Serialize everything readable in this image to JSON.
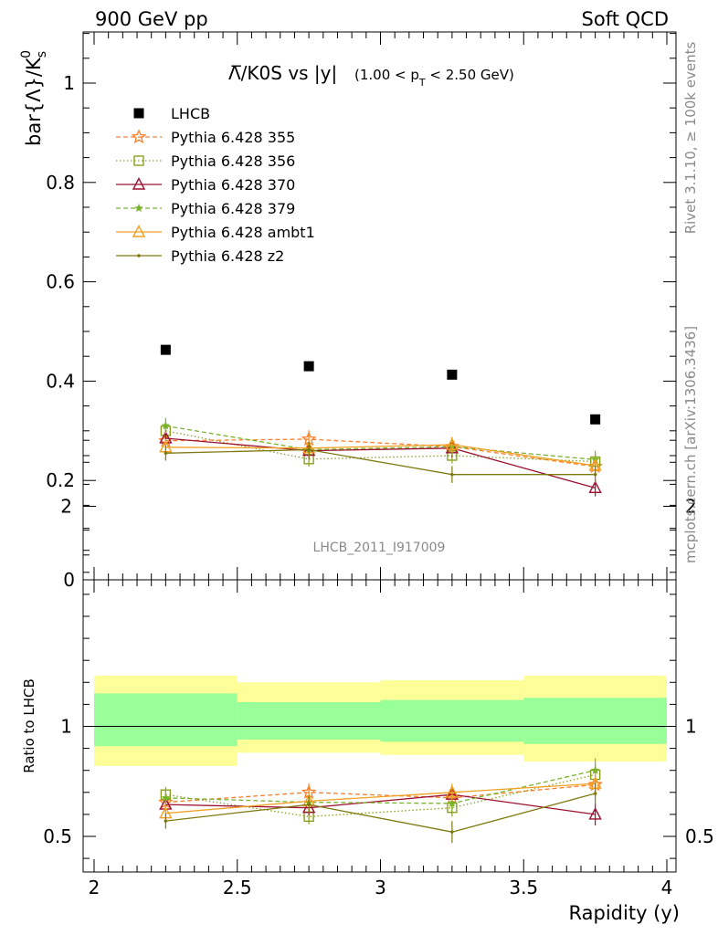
{
  "header": {
    "left": "900 GeV pp",
    "right": "Soft QCD"
  },
  "side_labels": {
    "top": "Rivet 3.1.10, ≥ 100k events",
    "bottom": "mcplots.cern.ch [arXiv:1306.3436]"
  },
  "watermark": "LHCB_2011_I917009",
  "colors": {
    "data": "#000000",
    "p355": "#ff7f27",
    "p356": "#8ca020",
    "p370": "#9c1131",
    "p379": "#78b428",
    "ambt1": "#f0a020",
    "z2": "#7f7a10",
    "band_outer": "#ffff99",
    "band_inner": "#99ff99"
  },
  "chart_data": [
    {
      "type": "scatter",
      "panel": "main",
      "title": "Λ̅/K0S vs |y|",
      "title_note": "(1.00 < p",
      "title_note_sub": "T",
      "title_note_tail": " < 2.50 GeV)",
      "ylabel": "bar{Λ}/K",
      "ylabel_sub": "s",
      "ylabel_sup": "0",
      "xlim": [
        2,
        4
      ],
      "ylim": [
        0,
        1.1
      ],
      "yticks": [
        0,
        0.2,
        0.4,
        0.6,
        0.8,
        1
      ],
      "ytick_labels": [
        "0",
        "0.2",
        "0.4",
        "0.6",
        "0.8",
        "1"
      ],
      "legend_position": "top-left",
      "x": [
        2.25,
        2.75,
        3.25,
        3.75
      ],
      "series": [
        {
          "name": "LHCB",
          "key": "data",
          "marker": "filled-square",
          "line": "none",
          "values": [
            0.463,
            0.43,
            0.413,
            0.323
          ],
          "errors": [
            0.004,
            0.004,
            0.004,
            0.004
          ]
        },
        {
          "name": "Pythia 6.428 355",
          "key": "p355",
          "marker": "open-star",
          "line": "dashed",
          "values": [
            0.28,
            0.283,
            0.268,
            0.228
          ],
          "errors": [
            0.016,
            0.018,
            0.018,
            0.016
          ]
        },
        {
          "name": "Pythia 6.428 356",
          "key": "p356",
          "marker": "open-square",
          "line": "dotted",
          "values": [
            0.3,
            0.243,
            0.25,
            0.238
          ],
          "errors": [
            0.015,
            0.015,
            0.016,
            0.016
          ]
        },
        {
          "name": "Pythia 6.428 370",
          "key": "p370",
          "marker": "open-triangle",
          "line": "solid",
          "values": [
            0.285,
            0.26,
            0.265,
            0.185
          ],
          "errors": [
            0.016,
            0.016,
            0.018,
            0.017
          ]
        },
        {
          "name": "Pythia 6.428 379",
          "key": "p379",
          "marker": "star",
          "line": "dashed",
          "values": [
            0.31,
            0.262,
            0.268,
            0.242
          ],
          "errors": [
            0.016,
            0.016,
            0.018,
            0.018
          ]
        },
        {
          "name": "Pythia 6.428 ambt1",
          "key": "ambt1",
          "marker": "open-triangle",
          "line": "solid",
          "values": [
            0.267,
            0.265,
            0.272,
            0.23
          ],
          "errors": [
            0.016,
            0.016,
            0.016,
            0.016
          ]
        },
        {
          "name": "Pythia 6.428 z2",
          "key": "z2",
          "marker": "dot",
          "line": "solid",
          "values": [
            0.255,
            0.262,
            0.212,
            0.212
          ],
          "errors": [
            0.015,
            0.016,
            0.017,
            0.017
          ]
        }
      ]
    },
    {
      "type": "scatter",
      "panel": "ratio",
      "xlabel": "Rapidity (y)",
      "ylabel": "Ratio to LHCB",
      "xlim": [
        2,
        4
      ],
      "ylim": [
        0.35,
        2.35
      ],
      "xticks": [
        2,
        2.5,
        3,
        3.5,
        4
      ],
      "xtick_labels": [
        "2",
        "2.5",
        "3",
        "3.5",
        "4"
      ],
      "yticks": [
        0.5,
        1,
        2
      ],
      "ytick_labels": [
        "0.5",
        "1",
        "2"
      ],
      "reference_line": 1,
      "bands": [
        {
          "x_range": [
            2.0,
            2.5
          ],
          "outer": [
            0.82,
            1.23
          ],
          "inner": [
            0.91,
            1.15
          ]
        },
        {
          "x_range": [
            2.5,
            3.0
          ],
          "outer": [
            0.88,
            1.2
          ],
          "inner": [
            0.94,
            1.11
          ]
        },
        {
          "x_range": [
            3.0,
            3.5
          ],
          "outer": [
            0.87,
            1.21
          ],
          "inner": [
            0.93,
            1.12
          ]
        },
        {
          "x_range": [
            3.5,
            4.0
          ],
          "outer": [
            0.84,
            1.23
          ],
          "inner": [
            0.92,
            1.13
          ]
        }
      ],
      "x": [
        2.25,
        2.75,
        3.25,
        3.75
      ],
      "series": [
        {
          "name": "Pythia 6.428 355",
          "key": "p355",
          "values": [
            0.655,
            0.7,
            0.675,
            0.735
          ],
          "errors": [
            0.035,
            0.04,
            0.04,
            0.05
          ]
        },
        {
          "name": "Pythia 6.428 356",
          "key": "p356",
          "values": [
            0.69,
            0.59,
            0.63,
            0.78
          ],
          "errors": [
            0.035,
            0.035,
            0.04,
            0.05
          ]
        },
        {
          "name": "Pythia 6.428 370",
          "key": "p370",
          "values": [
            0.645,
            0.63,
            0.69,
            0.6
          ],
          "errors": [
            0.035,
            0.035,
            0.04,
            0.05
          ]
        },
        {
          "name": "Pythia 6.428 379",
          "key": "p379",
          "values": [
            0.675,
            0.655,
            0.65,
            0.8
          ],
          "errors": [
            0.035,
            0.04,
            0.04,
            0.055
          ]
        },
        {
          "name": "Pythia 6.428 ambt1",
          "key": "ambt1",
          "values": [
            0.605,
            0.66,
            0.7,
            0.74
          ],
          "errors": [
            0.035,
            0.04,
            0.04,
            0.05
          ]
        },
        {
          "name": "Pythia 6.428 z2",
          "key": "z2",
          "values": [
            0.57,
            0.645,
            0.52,
            0.695
          ],
          "errors": [
            0.035,
            0.04,
            0.05,
            0.05
          ]
        }
      ]
    }
  ]
}
